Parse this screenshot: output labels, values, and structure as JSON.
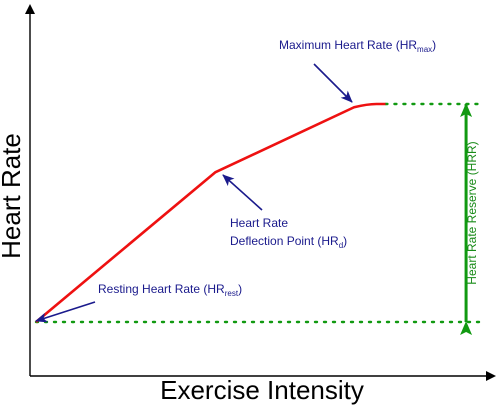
{
  "chart_data": {
    "type": "line",
    "title": "",
    "xlabel": "Exercise Intensity",
    "ylabel": "Heart Rate",
    "xlim": [
      0,
      100
    ],
    "ylim": [
      0,
      100
    ],
    "series": [
      {
        "color": "#ee1111",
        "x": [
          0,
          40,
          71,
          74,
          78
        ],
        "y": [
          0,
          46,
          66,
          67,
          67
        ]
      }
    ],
    "reference_lines": [
      {
        "style": "dotted",
        "color": "#119911",
        "y": 0,
        "x_from": 0,
        "x_to": 100
      },
      {
        "style": "dotted",
        "color": "#119911",
        "y": 67,
        "x_from": 78,
        "x_to": 100
      }
    ],
    "reserve_span": {
      "x": 96,
      "y_from": 0,
      "y_to": 67,
      "color": "#119911"
    },
    "annotations": {
      "resting": {
        "text": "Resting Heart Rate (HR",
        "sub": "rest",
        "suffix": ")"
      },
      "deflection_line1": {
        "text": "Heart Rate"
      },
      "deflection_line2": {
        "text": "Deflection Point (HR",
        "sub": "d",
        "suffix": ")"
      },
      "maximum": {
        "text": "Maximum Heart Rate (HR",
        "sub": "max",
        "suffix": ")"
      },
      "reserve": {
        "text": "Heart Rate Reserve (HRR)"
      }
    },
    "colors": {
      "axis": "#000000",
      "line": "#ee1111",
      "annotation": "#1a1a8c",
      "reserve": "#119911"
    }
  }
}
